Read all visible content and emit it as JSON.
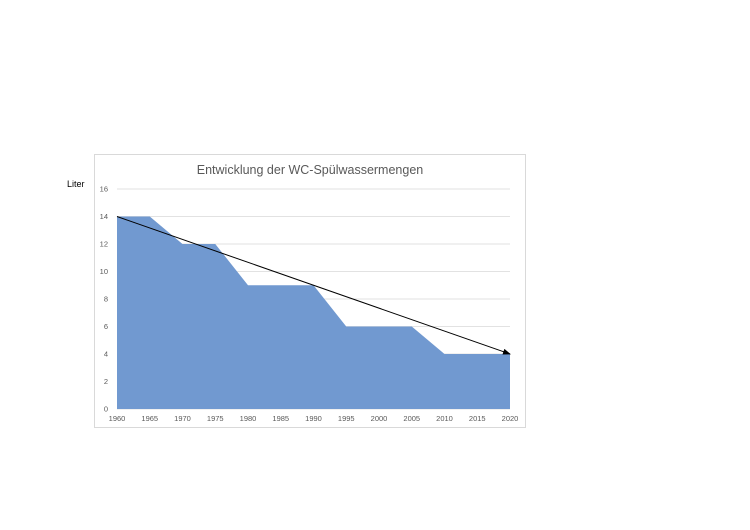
{
  "chart_data": {
    "type": "area",
    "title": "Entwicklung der WC-Spülwassermengen",
    "ylabel": "Liter",
    "xlabel": "",
    "x": [
      1960,
      1965,
      1970,
      1975,
      1980,
      1985,
      1990,
      1995,
      2000,
      2005,
      2010,
      2015,
      2020
    ],
    "values": [
      14,
      14,
      12,
      12,
      9,
      9,
      9,
      6,
      6,
      6,
      4,
      4,
      4
    ],
    "x_ticks": [
      "1960",
      "1965",
      "1970",
      "1975",
      "1980",
      "1985",
      "1990",
      "1995",
      "2000",
      "2005",
      "2010",
      "2015",
      "2020"
    ],
    "y_ticks": [
      "0",
      "2",
      "4",
      "6",
      "8",
      "10",
      "12",
      "14",
      "16"
    ],
    "ylim": [
      0,
      16
    ],
    "grid": "horizontal",
    "legend": "none",
    "trend_arrow": {
      "from": [
        1960,
        14
      ],
      "to": [
        2020,
        4
      ]
    },
    "colors": {
      "area": "#7199d0",
      "grid": "#d9d9d9",
      "arrow": "#000000",
      "text": "#595959"
    }
  }
}
